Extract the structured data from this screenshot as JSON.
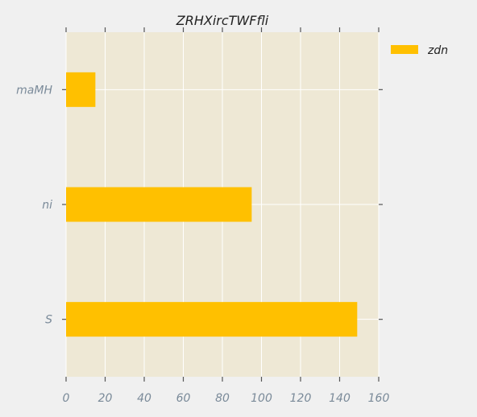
{
  "chart_data": {
    "type": "bar",
    "orientation": "horizontal",
    "title": "ZRHXircTWFfli",
    "xlabel": "",
    "ylabel": "",
    "categories": [
      "S",
      "ni",
      "maMH"
    ],
    "series": [
      {
        "name": "zdn",
        "values": [
          149,
          95,
          15
        ],
        "color": "#ffc000"
      }
    ],
    "xlim": [
      0,
      160
    ],
    "xticks": [
      "0",
      "20",
      "40",
      "60",
      "80",
      "100",
      "120",
      "140",
      "160"
    ],
    "grid": true,
    "legend": "top-right",
    "colors": {
      "plot_background": "#eee8d5",
      "page_background": "#f0f0f0",
      "grid": "#ffffff",
      "tick_label": "#7a8a99",
      "tick_mark": "#555555"
    }
  }
}
